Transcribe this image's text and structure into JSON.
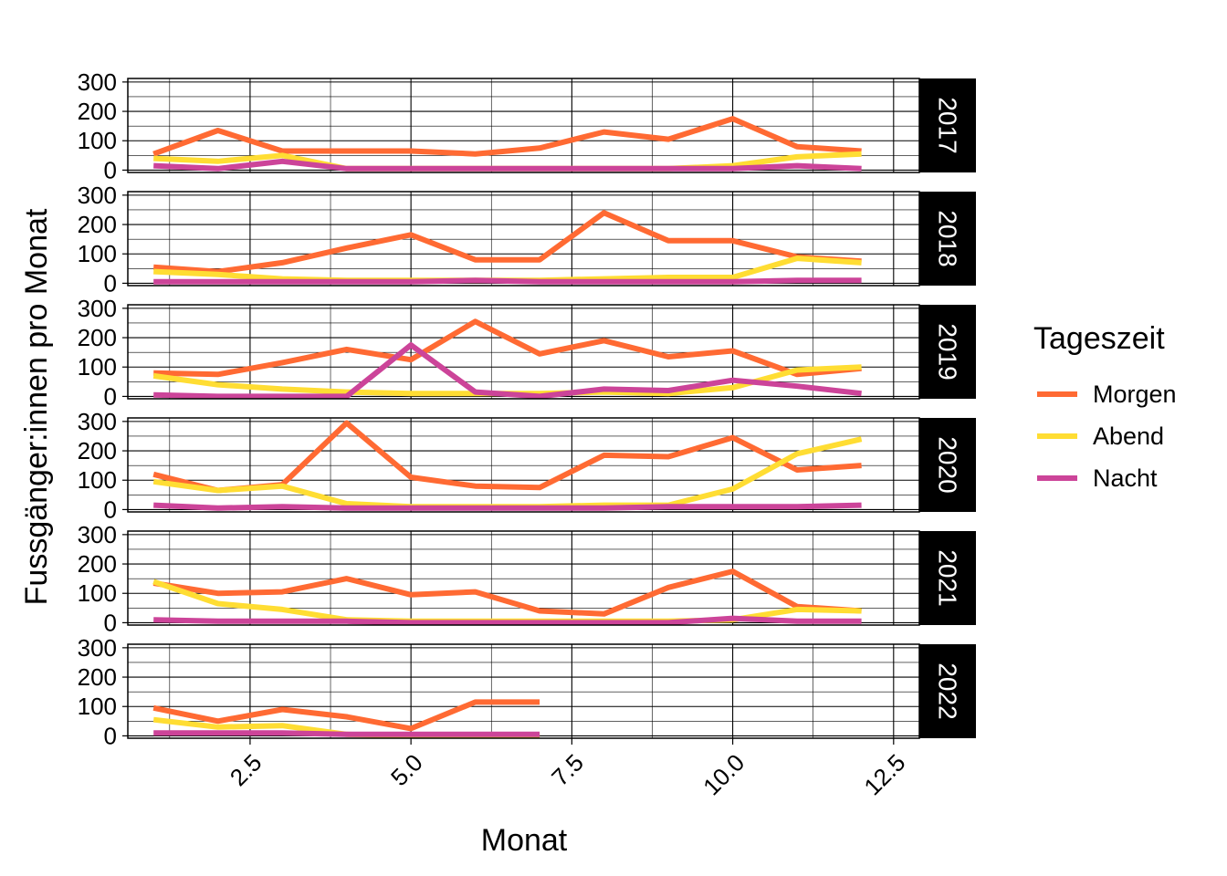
{
  "chart_data": {
    "type": "line",
    "xlabel": "Monat",
    "ylabel": "Fussgänger:innen pro Monat",
    "xlim": [
      0.6,
      12.9
    ],
    "ylim": [
      -8,
      312
    ],
    "x_ticks": [
      2.5,
      5.0,
      7.5,
      10.0,
      12.5
    ],
    "x_tick_labels": [
      "2.5",
      "5.0",
      "7.5",
      "10.0",
      "12.5"
    ],
    "y_ticks": [
      0,
      100,
      200,
      300
    ],
    "y_tick_labels": [
      "0",
      "100",
      "200",
      "300"
    ],
    "grid": true,
    "legend": {
      "title": "Tageszeit",
      "placement": "right",
      "entries": [
        "Morgen",
        "Abend",
        "Nacht"
      ]
    },
    "series_colors": {
      "Morgen": "#FF6A33",
      "Abend": "#FFDD33",
      "Nacht": "#CC4499"
    },
    "facets": [
      {
        "label": "2017",
        "x": [
          1,
          2,
          3,
          4,
          5,
          6,
          7,
          8,
          9,
          10,
          11,
          12
        ],
        "series": [
          {
            "name": "Morgen",
            "values": [
              55,
              135,
              65,
              65,
              65,
              55,
              75,
              130,
              105,
              175,
              80,
              65
            ]
          },
          {
            "name": "Abend",
            "values": [
              40,
              30,
              50,
              5,
              5,
              5,
              5,
              5,
              5,
              15,
              45,
              55
            ]
          },
          {
            "name": "Nacht",
            "values": [
              15,
              5,
              30,
              5,
              5,
              5,
              5,
              5,
              5,
              5,
              15,
              5
            ]
          }
        ]
      },
      {
        "label": "2018",
        "x": [
          1,
          2,
          3,
          4,
          5,
          6,
          7,
          8,
          9,
          10,
          11,
          12
        ],
        "series": [
          {
            "name": "Morgen",
            "values": [
              55,
              40,
              70,
              120,
              165,
              80,
              80,
              240,
              145,
              145,
              90,
              75
            ]
          },
          {
            "name": "Abend",
            "values": [
              40,
              30,
              15,
              10,
              10,
              10,
              10,
              15,
              20,
              20,
              85,
              70
            ]
          },
          {
            "name": "Nacht",
            "values": [
              5,
              5,
              5,
              5,
              5,
              10,
              5,
              5,
              5,
              5,
              10,
              10
            ]
          }
        ]
      },
      {
        "label": "2019",
        "x": [
          1,
          2,
          3,
          4,
          5,
          6,
          7,
          8,
          9,
          10,
          11,
          12
        ],
        "series": [
          {
            "name": "Morgen",
            "values": [
              80,
              75,
              115,
              160,
              125,
              255,
              145,
              190,
              135,
              155,
              75,
              95
            ]
          },
          {
            "name": "Abend",
            "values": [
              70,
              40,
              25,
              15,
              10,
              10,
              10,
              15,
              10,
              30,
              90,
              100
            ]
          },
          {
            "name": "Nacht",
            "values": [
              5,
              0,
              0,
              0,
              175,
              15,
              0,
              25,
              20,
              55,
              35,
              10
            ]
          }
        ]
      },
      {
        "label": "2020",
        "x": [
          1,
          2,
          3,
          4,
          5,
          6,
          7,
          8,
          9,
          10,
          11,
          12
        ],
        "series": [
          {
            "name": "Morgen",
            "values": [
              120,
              65,
              85,
              295,
              110,
              80,
              75,
              185,
              180,
              245,
              135,
              150
            ]
          },
          {
            "name": "Abend",
            "values": [
              95,
              65,
              80,
              20,
              10,
              10,
              10,
              15,
              15,
              70,
              190,
              240
            ]
          },
          {
            "name": "Nacht",
            "values": [
              15,
              5,
              10,
              5,
              5,
              5,
              5,
              5,
              10,
              10,
              10,
              15
            ]
          }
        ]
      },
      {
        "label": "2021",
        "x": [
          1,
          2,
          3,
          4,
          5,
          6,
          7,
          8,
          9,
          10,
          11,
          12
        ],
        "series": [
          {
            "name": "Morgen",
            "values": [
              135,
              100,
              105,
              150,
              95,
              105,
              40,
              30,
              120,
              175,
              55,
              40
            ]
          },
          {
            "name": "Abend",
            "values": [
              140,
              65,
              45,
              10,
              5,
              5,
              5,
              5,
              5,
              10,
              45,
              40
            ]
          },
          {
            "name": "Nacht",
            "values": [
              10,
              5,
              5,
              5,
              0,
              0,
              0,
              0,
              0,
              15,
              5,
              5
            ]
          }
        ]
      },
      {
        "label": "2022",
        "x": [
          1,
          2,
          3,
          4,
          5,
          6,
          7
        ],
        "series": [
          {
            "name": "Morgen",
            "values": [
              95,
              50,
              90,
              65,
              25,
              115,
              115
            ]
          },
          {
            "name": "Abend",
            "values": [
              55,
              30,
              35,
              5,
              0,
              0,
              0
            ]
          },
          {
            "name": "Nacht",
            "values": [
              10,
              10,
              10,
              5,
              5,
              5,
              5
            ]
          }
        ]
      }
    ]
  }
}
